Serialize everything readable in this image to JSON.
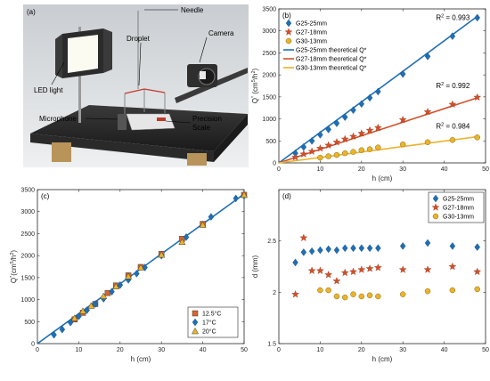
{
  "colors": {
    "blue": "#1f6fb4",
    "red": "#d1502a",
    "yellow": "#eab32a",
    "orange_sq": "#d9652b",
    "marker_edge": "#5a4a2a"
  },
  "panel_a": {
    "label": "(a)",
    "annotations": [
      "Needle",
      "Camera",
      "Droplet",
      "LED light",
      "Microphone",
      "Precision",
      "Scale"
    ]
  },
  "chart_data": [
    {
      "id": "b",
      "type": "scatter",
      "panel_label": "(b)",
      "xlabel": "h (cm)",
      "ylabel_main": "Q",
      "ylabel_sup": "*",
      "ylabel_unit_a": " (cm",
      "ylabel_unit_sup1": "5",
      "ylabel_unit_b": "/h",
      "ylabel_unit_sup2": "2",
      "ylabel_unit_c": ")",
      "xlim": [
        0,
        50
      ],
      "ylim": [
        0,
        3500
      ],
      "xticks": [
        0,
        10,
        20,
        30,
        40,
        50
      ],
      "yticks": [
        0,
        500,
        1000,
        1500,
        2000,
        2500,
        3000,
        3500
      ],
      "grid": false,
      "legend_position": "top-left",
      "series": [
        {
          "name": "G25-25mm",
          "marker": "diamond",
          "color": "#1f6fb4",
          "x": [
            4,
            6,
            8,
            10,
            12,
            14,
            16,
            18,
            20,
            22,
            24,
            30,
            36,
            42,
            48
          ],
          "y": [
            220,
            360,
            500,
            640,
            760,
            900,
            1040,
            1200,
            1340,
            1480,
            1620,
            2020,
            2420,
            2880,
            3300
          ]
        },
        {
          "name": "G27-18mm",
          "marker": "star",
          "color": "#d1502a",
          "x": [
            4,
            6,
            8,
            10,
            12,
            14,
            16,
            18,
            20,
            22,
            24,
            30,
            36,
            42,
            48
          ],
          "y": [
            130,
            200,
            260,
            330,
            400,
            470,
            540,
            600,
            670,
            740,
            800,
            980,
            1160,
            1330,
            1490
          ]
        },
        {
          "name": "G30-13mm",
          "marker": "circle",
          "color": "#eab32a",
          "x": [
            10,
            12,
            14,
            16,
            18,
            20,
            22,
            24,
            30,
            36,
            42,
            48
          ],
          "y": [
            120,
            150,
            180,
            220,
            250,
            290,
            310,
            350,
            420,
            470,
            520,
            580
          ]
        }
      ],
      "lines": [
        {
          "name": "G25-25mm theoretical Q*",
          "color": "#1f6fb4",
          "x": [
            0,
            48
          ],
          "y": [
            0,
            3330
          ]
        },
        {
          "name": "G27-18mm theoretical Q*",
          "color": "#d1502a",
          "x": [
            0,
            48
          ],
          "y": [
            0,
            1480
          ]
        },
        {
          "name": "G30-13mm theoretical Q*",
          "color": "#eab32a",
          "x": [
            0,
            48
          ],
          "y": [
            0,
            595
          ]
        }
      ],
      "r2": [
        {
          "prefix": "R",
          "sup": "2",
          "value": " = 0.993",
          "x": 38,
          "y": 3250
        },
        {
          "prefix": "R",
          "sup": "2",
          "value": " = 0.992",
          "x": 38,
          "y": 1700
        },
        {
          "prefix": "R",
          "sup": "2",
          "value": " = 0.984",
          "x": 38,
          "y": 780
        }
      ]
    },
    {
      "id": "c",
      "type": "scatter",
      "panel_label": "(c)",
      "xlabel": "h (cm)",
      "ylabel_main": "Q",
      "ylabel_sup": "*",
      "ylabel_unit_a": "(cm",
      "ylabel_unit_sup1": "5",
      "ylabel_unit_b": "/h",
      "ylabel_unit_sup2": "2",
      "ylabel_unit_c": ")",
      "xlim": [
        0,
        50
      ],
      "ylim": [
        0,
        3500
      ],
      "xticks": [
        0,
        10,
        20,
        30,
        40,
        50
      ],
      "yticks": [
        0,
        500,
        1000,
        1500,
        2000,
        2500,
        3000,
        3500
      ],
      "grid": false,
      "legend_position": "bottom-right",
      "series": [
        {
          "name": "12.5°C",
          "marker": "square",
          "color": "#d9652b",
          "x": [
            9,
            11,
            14,
            17,
            19,
            22,
            25,
            30,
            35,
            40,
            50
          ],
          "y": [
            550,
            700,
            900,
            1150,
            1320,
            1550,
            1740,
            2040,
            2380,
            2720,
            3380
          ]
        },
        {
          "name": "17°C",
          "marker": "diamond",
          "color": "#1f6fb4",
          "x": [
            4,
            6,
            8,
            10,
            12,
            14,
            16,
            18,
            20,
            22,
            24,
            26,
            30,
            36,
            42,
            48,
            50
          ],
          "y": [
            200,
            320,
            480,
            620,
            760,
            900,
            1020,
            1180,
            1330,
            1450,
            1590,
            1730,
            2000,
            2420,
            2880,
            3300,
            3360
          ]
        },
        {
          "name": "20°C",
          "marker": "triangle",
          "color": "#eab32a",
          "x": [
            9,
            11,
            13,
            16,
            19,
            22,
            25,
            30,
            35,
            40,
            50
          ],
          "y": [
            580,
            740,
            860,
            1080,
            1300,
            1530,
            1730,
            2020,
            2310,
            2700,
            3380
          ]
        }
      ],
      "lines": [
        {
          "name": "",
          "color": "#1f6fb4",
          "x": [
            0,
            50
          ],
          "y": [
            0,
            3400
          ]
        }
      ]
    },
    {
      "id": "d",
      "type": "scatter",
      "panel_label": "(d)",
      "xlabel": "h (cm)",
      "ylabel_main": "d (mm)",
      "xlim": [
        0,
        50
      ],
      "ylim": [
        1.5,
        3.0
      ],
      "xticks": [
        0,
        10,
        20,
        30,
        40,
        50
      ],
      "yticks": [
        1.5,
        2,
        2.5
      ],
      "ytick_labels": [
        "1.5",
        "2",
        "2.5"
      ],
      "grid": false,
      "legend_position": "top-right",
      "series": [
        {
          "name": "G25-25mm",
          "marker": "diamond",
          "color": "#1f6fb4",
          "x": [
            4,
            6,
            8,
            10,
            12,
            14,
            16,
            18,
            20,
            22,
            24,
            30,
            36,
            42,
            48
          ],
          "y": [
            2.29,
            2.39,
            2.4,
            2.41,
            2.42,
            2.41,
            2.43,
            2.43,
            2.43,
            2.43,
            2.43,
            2.45,
            2.48,
            2.45,
            2.44
          ]
        },
        {
          "name": "G27-18mm",
          "marker": "star",
          "color": "#d1502a",
          "x": [
            4,
            6,
            8,
            10,
            12,
            14,
            16,
            18,
            20,
            22,
            24,
            30,
            36,
            42,
            48
          ],
          "y": [
            1.98,
            2.53,
            2.21,
            2.21,
            2.17,
            2.11,
            2.19,
            2.2,
            2.22,
            2.23,
            2.24,
            2.22,
            2.22,
            2.25,
            2.2
          ]
        },
        {
          "name": "G30-13mm",
          "marker": "circle",
          "color": "#eab32a",
          "x": [
            10,
            12,
            14,
            16,
            18,
            20,
            22,
            24,
            30,
            36,
            42,
            48
          ],
          "y": [
            2.02,
            2.02,
            1.96,
            1.95,
            1.98,
            1.96,
            1.97,
            1.96,
            1.98,
            2.01,
            2.02,
            2.03
          ]
        }
      ]
    }
  ]
}
